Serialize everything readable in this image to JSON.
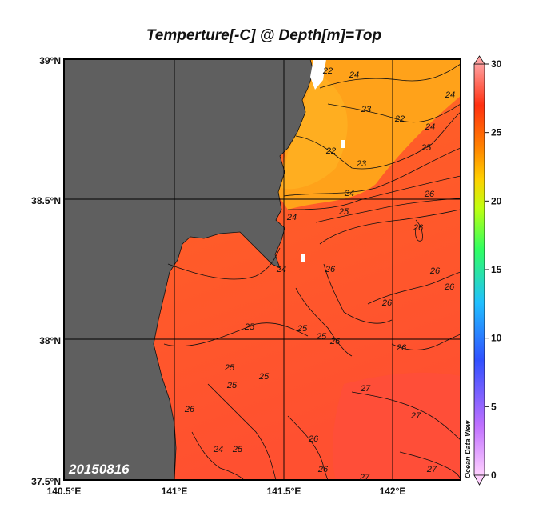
{
  "title": "Temperture[-C] @ Depth[m]=Top",
  "date_stamp": "20150816",
  "credit": "Ocean Data View",
  "colors": {
    "land": "#5f5f5f",
    "ocean_warm": "#ff5a2a",
    "ocean_cool": "#ff9a18",
    "ocean_coolest": "#ffb020",
    "grid": "#000000"
  },
  "lat_labels": [
    "39°N",
    "38.5°N",
    "38°N",
    "37.5°N"
  ],
  "lon_labels": [
    "140.5°E",
    "141°E",
    "141.5°E",
    "142°E"
  ],
  "colorbar": {
    "min": 0,
    "max": 30,
    "tick_labels": [
      "30",
      "25",
      "20",
      "15",
      "10",
      "5",
      "0"
    ],
    "scale": [
      "#ffd0ff",
      "#c070ff",
      "#3050ff",
      "#20c0ff",
      "#30ff60",
      "#c0ff10",
      "#ffd000",
      "#ff8000",
      "#ff3010",
      "#ffa0a0"
    ]
  },
  "contour_labels": [
    {
      "text": "22"
    },
    {
      "text": "24"
    },
    {
      "text": "23"
    },
    {
      "text": "22"
    },
    {
      "text": "24"
    },
    {
      "text": "24"
    },
    {
      "text": "22"
    },
    {
      "text": "23"
    },
    {
      "text": "25"
    },
    {
      "text": "24"
    },
    {
      "text": "26"
    },
    {
      "text": "25"
    },
    {
      "text": "24"
    },
    {
      "text": "26"
    },
    {
      "text": "26"
    },
    {
      "text": "26"
    },
    {
      "text": "26"
    },
    {
      "text": "24"
    },
    {
      "text": "26"
    },
    {
      "text": "25"
    },
    {
      "text": "25"
    },
    {
      "text": "25"
    },
    {
      "text": "26"
    },
    {
      "text": "26"
    },
    {
      "text": "25"
    },
    {
      "text": "25"
    },
    {
      "text": "25"
    },
    {
      "text": "27"
    },
    {
      "text": "26"
    },
    {
      "text": "27"
    },
    {
      "text": "24"
    },
    {
      "text": "25"
    },
    {
      "text": "26"
    },
    {
      "text": "26"
    },
    {
      "text": "27"
    },
    {
      "text": "27"
    }
  ]
}
